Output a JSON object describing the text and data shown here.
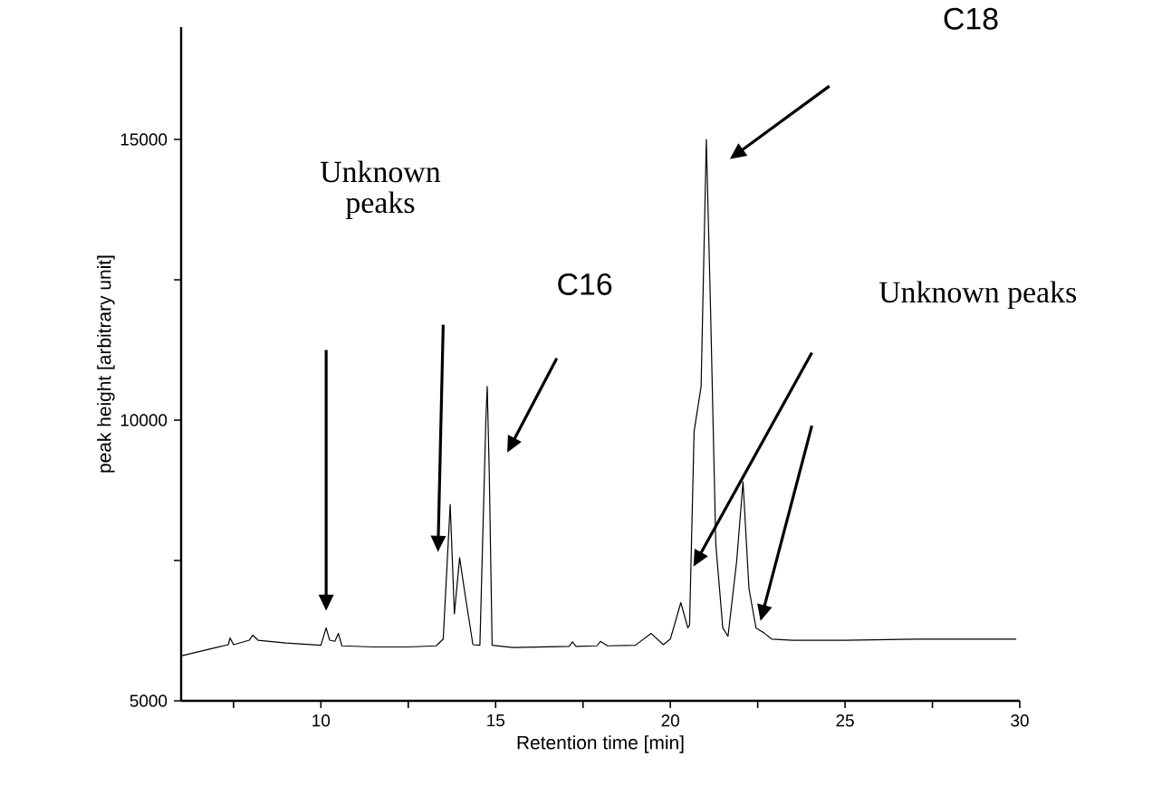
{
  "chart_data": {
    "type": "line",
    "xlabel": "Retention time [min]",
    "ylabel": "peak height [arbitrary unit]",
    "xlim": [
      6,
      30
    ],
    "ylim": [
      5000,
      17000
    ],
    "xticks": [
      {
        "value": 7.5,
        "label": null
      },
      10,
      {
        "value": 12.5,
        "label": null
      },
      15,
      {
        "value": 17.5,
        "label": null
      },
      20,
      {
        "value": 22.5,
        "label": null
      },
      25,
      {
        "value": 27.5,
        "label": null
      },
      30
    ],
    "yticks": [
      5000,
      {
        "value": 7500,
        "label": null
      },
      10000,
      {
        "value": 12500,
        "label": null
      },
      15000
    ],
    "grid": false,
    "marker": "none",
    "line_style": "solid",
    "series": [
      {
        "color": "#000000",
        "x": [
          6.0,
          7.0,
          7.35,
          7.4,
          7.5,
          7.95,
          8.05,
          8.2,
          9.0,
          10.0,
          10.15,
          10.25,
          10.4,
          10.5,
          10.6,
          11.5,
          12.5,
          13.3,
          13.5,
          13.7,
          13.82,
          13.97,
          14.1,
          14.35,
          14.55,
          14.72,
          14.76,
          14.82,
          14.9,
          15.5,
          17.1,
          17.2,
          17.3,
          17.9,
          18.0,
          18.2,
          19.0,
          19.45,
          19.8,
          20.0,
          20.3,
          20.5,
          20.55,
          20.68,
          20.78,
          20.88,
          21.03,
          21.15,
          21.3,
          21.5,
          21.65,
          21.9,
          22.08,
          22.25,
          22.45,
          22.7,
          22.9,
          23.5,
          25.0,
          27.0,
          29.9
        ],
        "values": [
          5800,
          5950,
          6000,
          6120,
          6000,
          6080,
          6170,
          6080,
          6030,
          5990,
          6300,
          6080,
          6060,
          6200,
          5980,
          5960,
          5960,
          5980,
          6100,
          8500,
          6550,
          7550,
          7000,
          6000,
          5990,
          10000,
          10600,
          9000,
          5990,
          5950,
          5970,
          6050,
          5970,
          5980,
          6060,
          5980,
          5990,
          6200,
          6000,
          6100,
          6750,
          6300,
          6350,
          9800,
          10200,
          10600,
          15000,
          12000,
          7800,
          6300,
          6150,
          7500,
          8900,
          7000,
          6300,
          6200,
          6100,
          6080,
          6080,
          6100,
          6100
        ]
      }
    ],
    "annotations": [
      "Unknown peaks",
      "C16",
      "C18",
      "Unknown peaks"
    ]
  }
}
